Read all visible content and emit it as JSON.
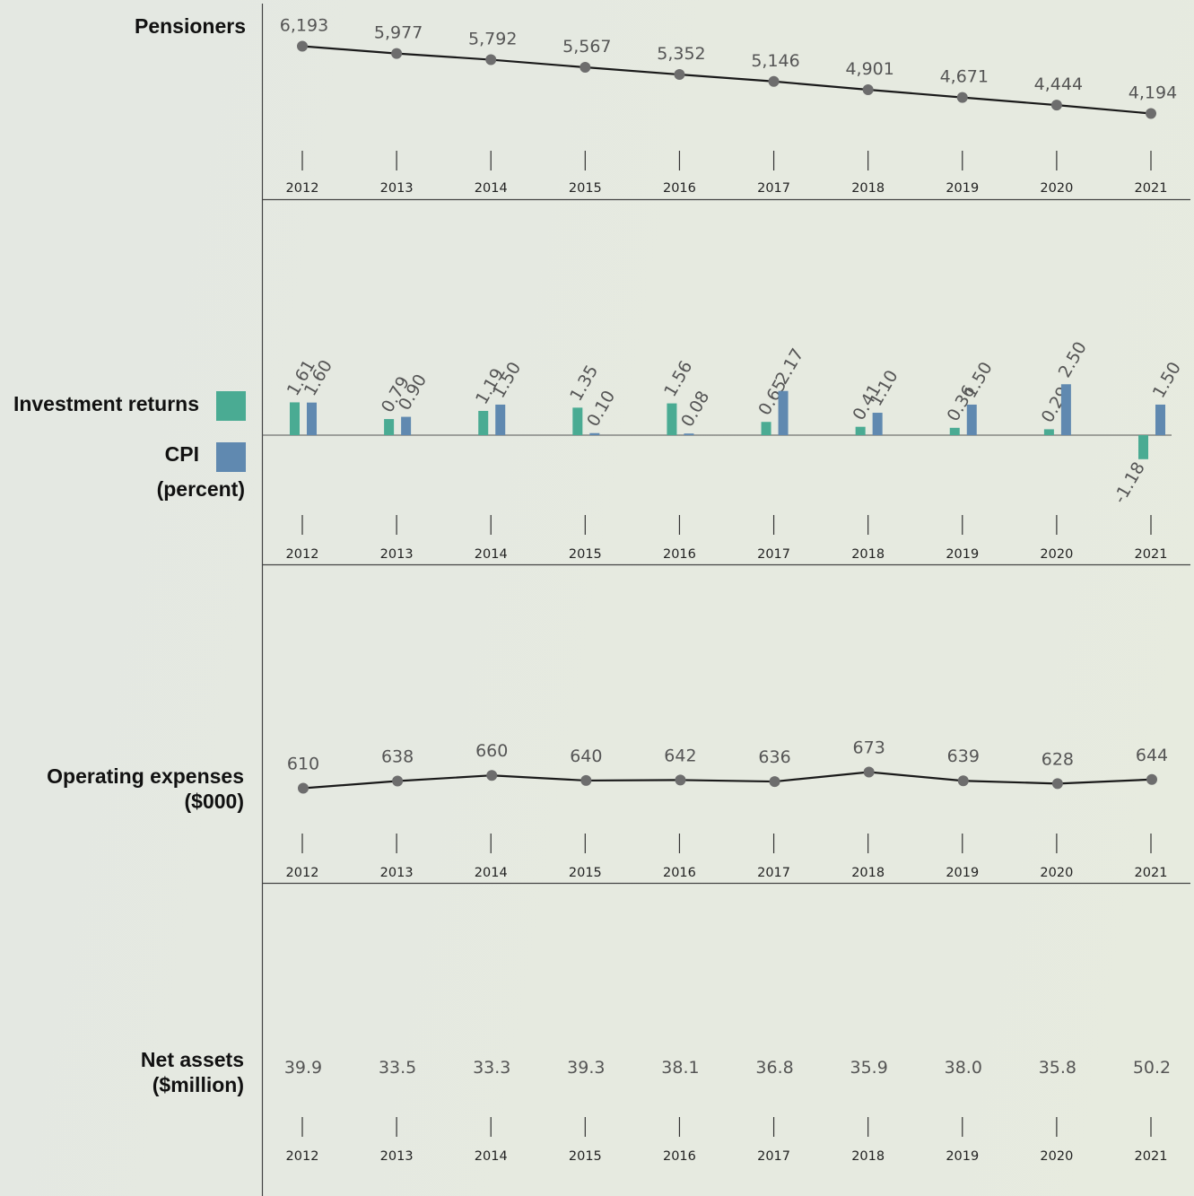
{
  "colors": {
    "investment": "#4aab93",
    "cpi": "#6089b0",
    "line": "#1a1a1a",
    "marker": "#6d6d6d",
    "text": "#555555"
  },
  "labels": {
    "pensioners": "Pensioners",
    "investment": "Investment returns",
    "cpi": "CPI",
    "percent": "(percent)",
    "opex_1": "Operating expenses",
    "opex_2": "($000)",
    "net_1": "Net assets",
    "net_2": "($million)"
  },
  "chart_data": [
    {
      "type": "line",
      "title": "Pensioners",
      "x": [
        "2012",
        "2013",
        "2014",
        "2015",
        "2016",
        "2017",
        "2018",
        "2019",
        "2020",
        "2021"
      ],
      "series": [
        {
          "name": "Pensioners",
          "values": [
            6193,
            5977,
            5792,
            5567,
            5352,
            5146,
            4901,
            4671,
            4444,
            4194
          ]
        }
      ],
      "value_labels": [
        "6,193",
        "5,977",
        "5,792",
        "5,567",
        "5,352",
        "5,146",
        "4,901",
        "4,671",
        "4,444",
        "4,194"
      ]
    },
    {
      "type": "bar",
      "categories": [
        "2012",
        "2013",
        "2014",
        "2015",
        "2016",
        "2017",
        "2018",
        "2019",
        "2020",
        "2021"
      ],
      "series": [
        {
          "name": "Investment returns",
          "values": [
            1.61,
            0.79,
            1.19,
            1.35,
            1.56,
            0.65,
            0.41,
            0.36,
            0.29,
            -1.18
          ],
          "labels": [
            "1.61",
            "0.79",
            "1.19",
            "1.35",
            "1.56",
            "0.65",
            "0.41",
            "0.36",
            "0.29",
            "-1.18"
          ]
        },
        {
          "name": "CPI",
          "values": [
            1.6,
            0.9,
            1.5,
            0.1,
            0.08,
            2.17,
            1.1,
            1.5,
            2.5,
            1.5
          ],
          "labels": [
            "1.60",
            "0.90",
            "1.50",
            "0.10",
            "0.08",
            "2.17",
            "1.10",
            "1.50",
            "2.50",
            "1.50"
          ]
        }
      ],
      "ylabel": "(percent)"
    },
    {
      "type": "line",
      "title": "Operating expenses ($000)",
      "x": [
        "2012",
        "2013",
        "2014",
        "2015",
        "2016",
        "2017",
        "2018",
        "2019",
        "2020",
        "2021"
      ],
      "series": [
        {
          "name": "Operating expenses",
          "values": [
            610,
            638,
            660,
            640,
            642,
            636,
            673,
            639,
            628,
            644
          ]
        }
      ],
      "value_labels": [
        "610",
        "638",
        "660",
        "640",
        "642",
        "636",
        "673",
        "639",
        "628",
        "644"
      ]
    },
    {
      "type": "table",
      "title": "Net assets ($million)",
      "x": [
        "2012",
        "2013",
        "2014",
        "2015",
        "2016",
        "2017",
        "2018",
        "2019",
        "2020",
        "2021"
      ],
      "values": [
        39.9,
        33.5,
        33.3,
        39.3,
        38.1,
        36.8,
        35.9,
        38.0,
        35.8,
        50.2
      ],
      "value_labels": [
        "39.9",
        "33.5",
        "33.3",
        "39.3",
        "38.1",
        "36.8",
        "35.9",
        "38.0",
        "35.8",
        "50.2"
      ]
    }
  ]
}
